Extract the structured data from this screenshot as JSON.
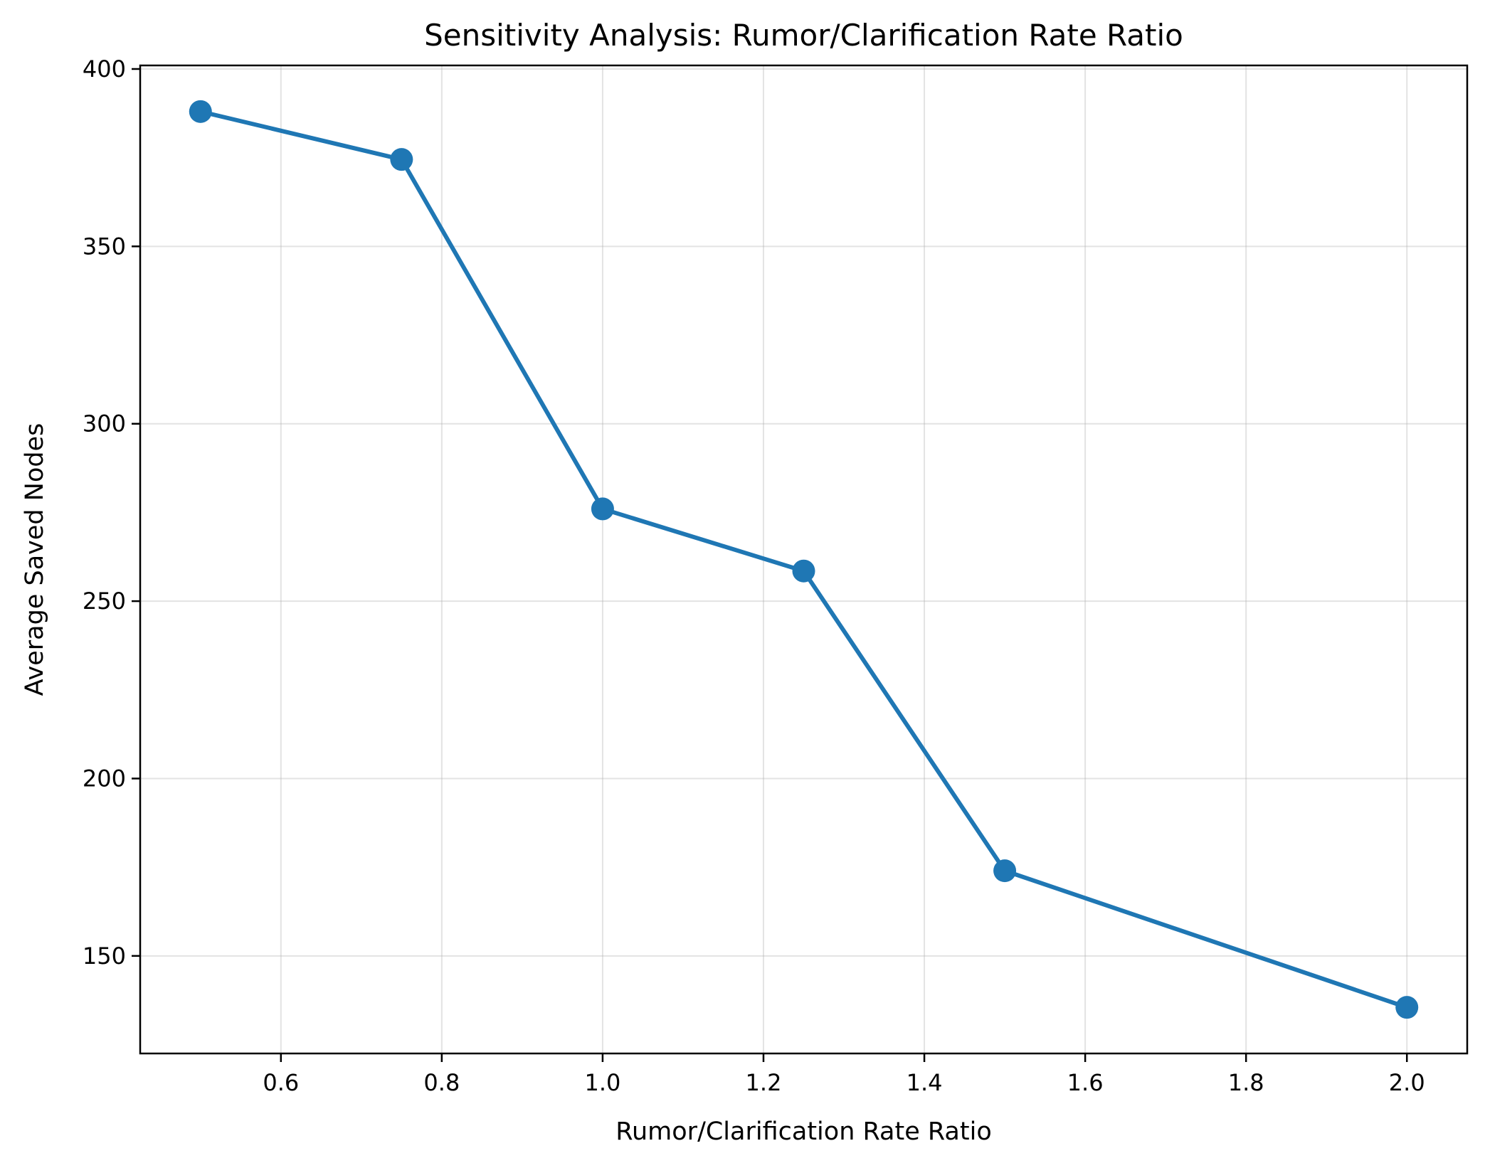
{
  "chart_data": {
    "type": "line",
    "title": "Sensitivity Analysis: Rumor/Clarification Rate Ratio",
    "xlabel": "Rumor/Clarification Rate Ratio",
    "ylabel": "Average Saved Nodes",
    "x": [
      0.5,
      0.75,
      1.0,
      1.25,
      1.5,
      2.0
    ],
    "series": [
      {
        "values": [
          388,
          374.5,
          276,
          258.5,
          174,
          135.5
        ],
        "color": "#1f77b4",
        "marker": "circle"
      }
    ],
    "xlim": [
      0.425,
      2.075
    ],
    "ylim": [
      122.5,
      401
    ],
    "xticks": [
      0.6,
      0.8,
      1.0,
      1.2,
      1.4,
      1.6,
      1.8,
      2.0
    ],
    "xtick_labels": [
      "0.6",
      "0.8",
      "1.0",
      "1.2",
      "1.4",
      "1.6",
      "1.8",
      "2.0"
    ],
    "yticks": [
      150,
      200,
      250,
      300,
      350,
      400
    ],
    "ytick_labels": [
      "150",
      "200",
      "250",
      "300",
      "350",
      "400"
    ],
    "grid": true,
    "legend": "none"
  }
}
